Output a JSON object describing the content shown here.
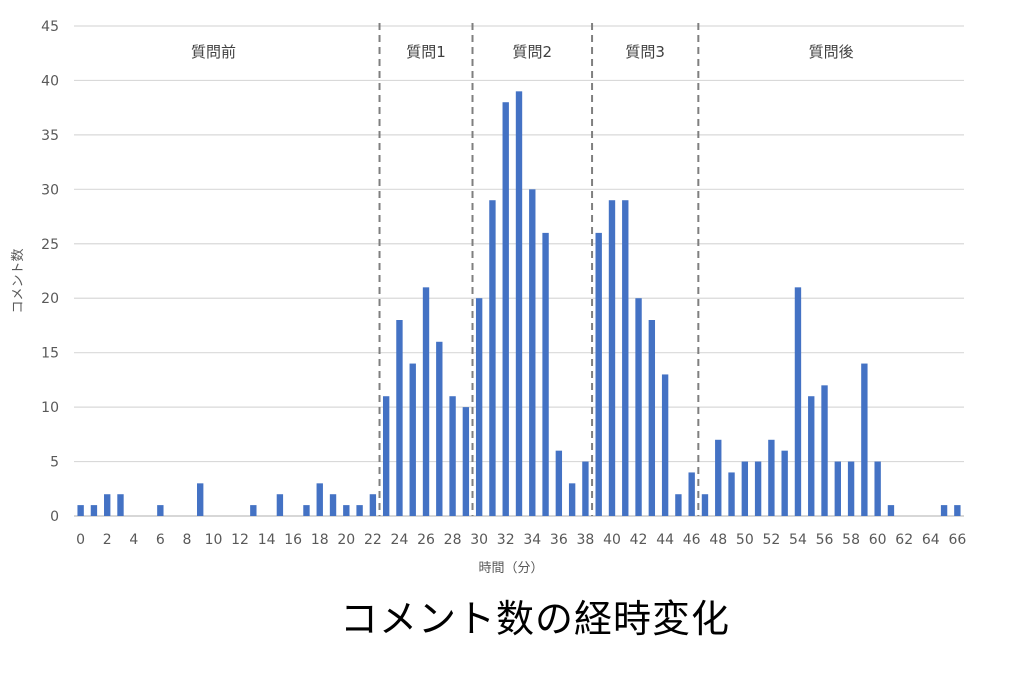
{
  "caption": "コメント数の経時変化",
  "colors": {
    "bar": "#4472C4",
    "gridline": "#d9d9d9",
    "axis": "#bfbfbf",
    "divider": "#7f7f7f"
  },
  "chart_data": {
    "type": "bar",
    "title": "コメント数の経時変化",
    "xlabel": "時間（分）",
    "ylabel": "コメント数",
    "ylim": [
      0,
      45
    ],
    "yticks": [
      0,
      5,
      10,
      15,
      20,
      25,
      30,
      35,
      40,
      45
    ],
    "xlim": [
      0,
      66
    ],
    "xtick_labels": [
      "0",
      "2",
      "4",
      "6",
      "8",
      "10",
      "12",
      "14",
      "16",
      "18",
      "20",
      "22",
      "24",
      "26",
      "28",
      "30",
      "32",
      "34",
      "36",
      "38",
      "40",
      "42",
      "44",
      "46",
      "48",
      "50",
      "52",
      "54",
      "56",
      "58",
      "60",
      "62",
      "64",
      "66"
    ],
    "grid": true,
    "x": [
      0,
      1,
      2,
      3,
      4,
      5,
      6,
      7,
      8,
      9,
      10,
      11,
      12,
      13,
      14,
      15,
      16,
      17,
      18,
      19,
      20,
      21,
      22,
      23,
      24,
      25,
      26,
      27,
      28,
      29,
      30,
      31,
      32,
      33,
      34,
      35,
      36,
      37,
      38,
      39,
      40,
      41,
      42,
      43,
      44,
      45,
      46,
      47,
      48,
      49,
      50,
      51,
      52,
      53,
      54,
      55,
      56,
      57,
      58,
      59,
      60,
      61,
      62,
      63,
      64,
      65,
      66
    ],
    "values": [
      1,
      1,
      2,
      2,
      0,
      0,
      1,
      0,
      0,
      3,
      0,
      0,
      0,
      1,
      0,
      2,
      0,
      1,
      3,
      2,
      1,
      1,
      2,
      11,
      18,
      14,
      21,
      16,
      11,
      10,
      20,
      29,
      38,
      39,
      30,
      26,
      6,
      3,
      5,
      26,
      29,
      29,
      20,
      18,
      13,
      2,
      4,
      2,
      7,
      4,
      5,
      5,
      7,
      6,
      21,
      11,
      12,
      5,
      5,
      14,
      5,
      1,
      0,
      0,
      0,
      1,
      1
    ],
    "dividers_x": [
      22.5,
      29.5,
      38.5,
      46.5
    ],
    "sections": [
      {
        "label": "質問前",
        "x_center": 10
      },
      {
        "label": "質問1",
        "x_center": 26
      },
      {
        "label": "質問2",
        "x_center": 34
      },
      {
        "label": "質問3",
        "x_center": 42.5
      },
      {
        "label": "質問後",
        "x_center": 56.5
      }
    ]
  }
}
